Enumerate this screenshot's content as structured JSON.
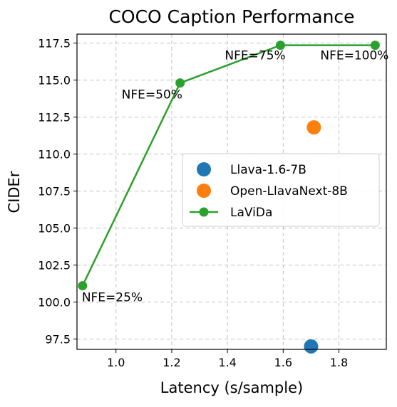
{
  "chart_data": {
    "type": "scatter",
    "title": "COCO Caption Performance",
    "xlabel": "Latency (s/sample)",
    "ylabel": "CIDEr",
    "xlim": [
      0.86,
      1.97
    ],
    "ylim": [
      96.8,
      118.1
    ],
    "xticks": [
      1.0,
      1.2,
      1.4,
      1.6,
      1.8
    ],
    "yticks": [
      97.5,
      100.0,
      102.5,
      105.0,
      107.5,
      110.0,
      112.5,
      115.0,
      117.5
    ],
    "grid": true,
    "legend_position": "center-right",
    "series": [
      {
        "name": "Llava-1.6-7B",
        "kind": "scatter",
        "color": "#1f77b4",
        "points": [
          {
            "x": 1.7,
            "y": 97.0
          }
        ]
      },
      {
        "name": "Open-LlavaNext-8B",
        "kind": "scatter",
        "color": "#ff7f0e",
        "points": [
          {
            "x": 1.71,
            "y": 111.8
          }
        ]
      },
      {
        "name": "LaViDa",
        "kind": "line",
        "color": "#2ca02c",
        "points": [
          {
            "x": 0.88,
            "y": 101.1
          },
          {
            "x": 1.23,
            "y": 114.8
          },
          {
            "x": 1.59,
            "y": 117.35
          },
          {
            "x": 1.93,
            "y": 117.35
          }
        ]
      }
    ],
    "annotations": [
      {
        "text": "NFE=25%",
        "x": 0.88,
        "y": 101.1
      },
      {
        "text": "NFE=50%",
        "x": 1.23,
        "y": 114.8
      },
      {
        "text": "NFE=75%",
        "x": 1.59,
        "y": 117.35
      },
      {
        "text": "NFE=100%",
        "x": 1.93,
        "y": 117.35
      }
    ]
  }
}
